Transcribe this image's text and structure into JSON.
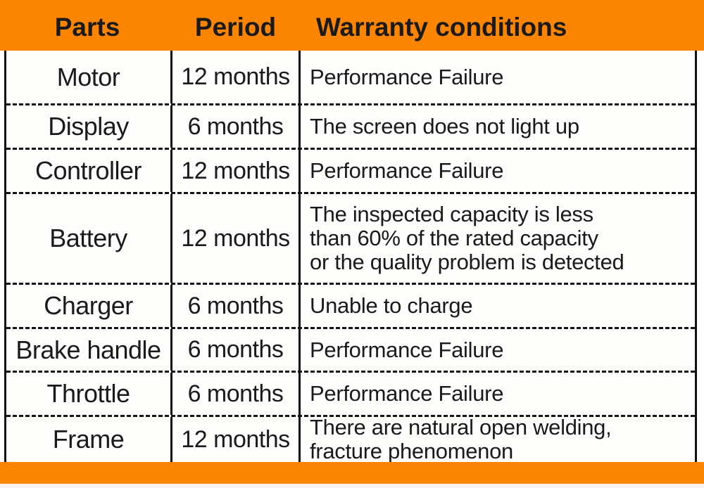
{
  "header": {
    "parts": "Parts",
    "period": "Period",
    "conditions": "Warranty conditions"
  },
  "rows": [
    {
      "part": "Motor",
      "period": "12 months",
      "condition": "Performance Failure"
    },
    {
      "part": "Display",
      "period": "6 months",
      "condition": "The screen does not light up"
    },
    {
      "part": "Controller",
      "period": "12 months",
      "condition": "Performance Failure"
    },
    {
      "part": "Battery",
      "period": "12 months",
      "condition": "The inspected capacity is less\nthan 60% of the rated capacity\nor the quality problem is detected"
    },
    {
      "part": "Charger",
      "period": "6 months",
      "condition": "Unable to charge"
    },
    {
      "part": "Brake handle",
      "period": "6 months",
      "condition": "Performance Failure"
    },
    {
      "part": "Throttle",
      "period": "6 months",
      "condition": "Performance Failure"
    },
    {
      "part": "Frame",
      "period": "12 months",
      "condition": "There are natural open welding,\nfracture phenomenon"
    }
  ],
  "colors": {
    "accent_orange": "#FB8500",
    "text": "#1A1A1A",
    "line": "#111111"
  }
}
